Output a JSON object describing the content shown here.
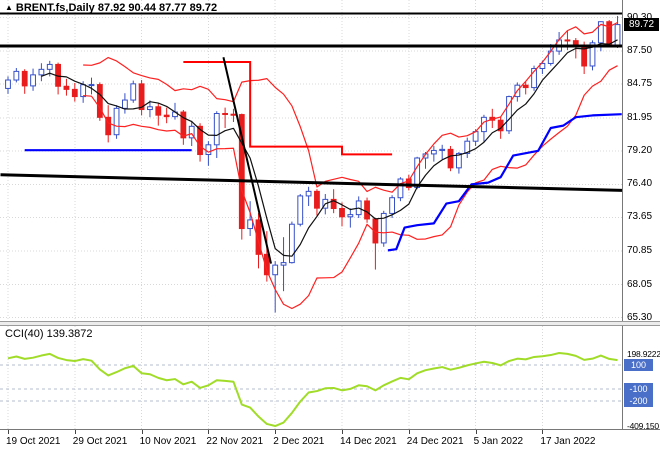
{
  "window": {
    "title_symbol": "BRENT.fs,Daily",
    "title_ohlc": "87.92 90.44 87.77 89.72"
  },
  "colors": {
    "background": "#ffffff",
    "bull": "#3650c8",
    "bull_fill": "#ffffff",
    "bear": "#e81c1c",
    "ma_fast": "#101010",
    "bands": "#ff2020",
    "step_line": "#ff0000",
    "slow_line": "#0000ff",
    "objects": "#000000",
    "cci": "#a0dc28",
    "level_line": "#b4bccc",
    "level_badge": "#4a6fc8",
    "price_badge_bg": "#000000",
    "grid": "#d8d8d8"
  },
  "chart_data": {
    "type": "candlestick",
    "symbol": "BRENT.fs",
    "timeframe": "Daily",
    "last_bar": {
      "open": 87.92,
      "high": 90.44,
      "low": 87.77,
      "close": 89.72
    },
    "price_axis": {
      "labels": [
        "90.30",
        "87.50",
        "84.75",
        "81.95",
        "79.20",
        "76.40",
        "73.65",
        "70.85",
        "68.05",
        "65.30"
      ],
      "badge": "89.72",
      "ylim": [
        64.93,
        91.77
      ]
    },
    "x_axis": {
      "ticks": [
        {
          "label": "19 Oct 2021",
          "i": 0
        },
        {
          "label": "29 Oct 2021",
          "i": 8
        },
        {
          "label": "10 Nov 2021",
          "i": 16
        },
        {
          "label": "22 Nov 2021",
          "i": 24
        },
        {
          "label": "2 Dec 2021",
          "i": 32
        },
        {
          "label": "14 Dec 2021",
          "i": 40
        },
        {
          "label": "24 Dec 2021",
          "i": 48
        },
        {
          "label": "5 Jan 2022",
          "i": 56
        },
        {
          "label": "17 Jan 2022",
          "i": 64
        }
      ]
    },
    "candles": [
      [
        84.4,
        85.4,
        83.95,
        85.1
      ],
      [
        85.1,
        86.1,
        84.9,
        85.82
      ],
      [
        85.82,
        86.0,
        83.95,
        84.61
      ],
      [
        84.61,
        86.05,
        84.2,
        85.53
      ],
      [
        85.53,
        86.5,
        85.0,
        85.99
      ],
      [
        85.99,
        86.7,
        85.4,
        86.4
      ],
      [
        86.4,
        86.55,
        83.9,
        84.58
      ],
      [
        84.58,
        85.2,
        83.8,
        84.32
      ],
      [
        84.32,
        84.85,
        83.3,
        83.72
      ],
      [
        83.72,
        85.0,
        83.2,
        84.71
      ],
      [
        84.71,
        85.3,
        83.9,
        84.72
      ],
      [
        84.72,
        84.9,
        81.7,
        81.99
      ],
      [
        81.99,
        83.0,
        79.9,
        80.54
      ],
      [
        80.54,
        83.0,
        80.2,
        82.74
      ],
      [
        82.74,
        84.0,
        82.3,
        83.43
      ],
      [
        83.43,
        85.05,
        83.2,
        84.78
      ],
      [
        84.78,
        85.1,
        82.15,
        82.64
      ],
      [
        82.64,
        83.4,
        82.0,
        82.87
      ],
      [
        82.87,
        83.2,
        81.3,
        82.17
      ],
      [
        82.17,
        82.8,
        81.5,
        82.05
      ],
      [
        82.05,
        83.2,
        81.8,
        82.43
      ],
      [
        82.43,
        82.6,
        79.7,
        80.28
      ],
      [
        80.28,
        81.7,
        79.6,
        81.24
      ],
      [
        81.24,
        81.5,
        78.3,
        78.89
      ],
      [
        78.89,
        80.0,
        77.95,
        79.7
      ],
      [
        79.7,
        82.5,
        78.6,
        82.31
      ],
      [
        82.31,
        82.8,
        81.1,
        82.25
      ],
      [
        82.25,
        82.7,
        81.6,
        82.22
      ],
      [
        82.22,
        82.3,
        71.8,
        72.72
      ],
      [
        72.72,
        75.0,
        72.1,
        73.44
      ],
      [
        73.44,
        74.0,
        69.4,
        70.57
      ],
      [
        70.57,
        72.5,
        68.3,
        68.87
      ],
      [
        68.87,
        70.0,
        65.72,
        69.67
      ],
      [
        69.67,
        72.0,
        67.5,
        69.88
      ],
      [
        69.88,
        73.3,
        69.8,
        73.08
      ],
      [
        73.08,
        75.6,
        72.9,
        75.44
      ],
      [
        75.44,
        76.2,
        74.6,
        75.82
      ],
      [
        75.82,
        76.0,
        73.8,
        74.42
      ],
      [
        74.42,
        75.6,
        73.9,
        75.15
      ],
      [
        75.15,
        76.0,
        74.0,
        74.39
      ],
      [
        74.39,
        74.9,
        72.9,
        73.7
      ],
      [
        73.7,
        74.4,
        72.8,
        73.88
      ],
      [
        73.88,
        75.4,
        73.6,
        75.02
      ],
      [
        75.02,
        75.3,
        73.2,
        73.52
      ],
      [
        73.52,
        73.6,
        69.3,
        71.52
      ],
      [
        71.52,
        74.2,
        71.2,
        73.98
      ],
      [
        73.98,
        75.5,
        73.6,
        75.29
      ],
      [
        75.29,
        77.0,
        75.0,
        76.85
      ],
      [
        76.85,
        77.2,
        75.9,
        76.14
      ],
      [
        76.14,
        78.7,
        76.0,
        78.6
      ],
      [
        78.6,
        79.1,
        77.7,
        78.94
      ],
      [
        78.94,
        79.6,
        78.3,
        79.23
      ],
      [
        79.23,
        79.7,
        78.5,
        79.32
      ],
      [
        79.32,
        79.6,
        77.5,
        77.78
      ],
      [
        77.78,
        79.1,
        77.3,
        78.98
      ],
      [
        78.98,
        80.3,
        78.6,
        80.0
      ],
      [
        80.0,
        81.0,
        79.6,
        80.8
      ],
      [
        80.8,
        82.2,
        79.9,
        81.99
      ],
      [
        81.99,
        82.7,
        81.1,
        81.75
      ],
      [
        81.75,
        82.0,
        80.2,
        80.87
      ],
      [
        80.87,
        83.8,
        80.6,
        83.72
      ],
      [
        83.72,
        84.9,
        83.3,
        84.67
      ],
      [
        84.67,
        85.0,
        83.9,
        84.47
      ],
      [
        84.47,
        86.3,
        84.2,
        86.06
      ],
      [
        86.06,
        86.71,
        85.6,
        86.48
      ],
      [
        86.48,
        88.1,
        86.3,
        87.51
      ],
      [
        87.51,
        89.1,
        87.2,
        88.44
      ],
      [
        88.44,
        89.2,
        87.6,
        88.38
      ],
      [
        88.38,
        88.6,
        86.9,
        87.89
      ],
      [
        87.89,
        88.3,
        85.6,
        86.27
      ],
      [
        86.27,
        88.4,
        85.9,
        88.2
      ],
      [
        88.2,
        90.0,
        87.5,
        89.96
      ],
      [
        89.96,
        90.1,
        87.95,
        88.1
      ],
      [
        87.92,
        90.44,
        87.77,
        89.72
      ]
    ],
    "overlays": {
      "sma_period": 5,
      "bollinger": {
        "period": 10,
        "dev": 1.6
      },
      "horizontal_lines": [
        {
          "price": 90.63,
          "w": 2
        },
        {
          "price": 87.95,
          "w": 3
        }
      ],
      "trend_lines": [
        {
          "i1": -0.9,
          "p1": 77.2,
          "i2": 73.6,
          "p2": 75.9,
          "w": 3
        },
        {
          "i1": 25.8,
          "p1": 87.0,
          "i2": 31.5,
          "p2": 69.8,
          "w": 2
        }
      ],
      "red_step": [
        [
          21,
          86.6
        ],
        [
          29,
          86.6
        ],
        [
          29,
          79.55
        ],
        [
          40,
          79.55
        ],
        [
          40,
          78.9
        ],
        [
          46,
          78.9
        ]
      ],
      "blue_segments": [
        [
          [
            2,
            79.25
          ],
          [
            22,
            79.25
          ]
        ],
        [
          [
            45.5,
            70.9
          ],
          [
            46.5,
            71.0
          ],
          [
            47.5,
            72.8
          ],
          [
            49,
            73.0
          ],
          [
            51,
            73.15
          ],
          [
            52.5,
            74.8
          ],
          [
            54,
            75.0
          ],
          [
            55.5,
            76.4
          ],
          [
            57.5,
            76.55
          ],
          [
            59,
            77.0
          ],
          [
            60.5,
            78.8
          ],
          [
            62,
            79.0
          ],
          [
            63.5,
            79.2
          ],
          [
            65,
            81.1
          ],
          [
            66.5,
            81.3
          ],
          [
            68,
            82.0
          ],
          [
            70,
            82.15
          ],
          [
            73.5,
            82.25
          ]
        ]
      ]
    },
    "indicator": {
      "name_label": "CCI(40)",
      "value_label": "139.3872",
      "type": "line",
      "values": [
        155,
        170,
        150,
        160,
        178,
        192,
        158,
        140,
        132,
        148,
        135,
        62,
        12,
        40,
        72,
        92,
        30,
        22,
        -8,
        -28,
        -18,
        -62,
        -40,
        -92,
        -70,
        -28,
        -33,
        -40,
        -230,
        -255,
        -330,
        -392,
        -409.15,
        -380,
        -300,
        -205,
        -130,
        -118,
        -95,
        -92,
        -112,
        -100,
        -70,
        -78,
        -112,
        -70,
        -38,
        -8,
        -20,
        30,
        56,
        70,
        82,
        60,
        76,
        96,
        112,
        126,
        116,
        96,
        132,
        152,
        146,
        166,
        172,
        182,
        198.92,
        192,
        175,
        142,
        152,
        178,
        150,
        139.39
      ],
      "levels": [
        "100",
        "-100",
        "-200"
      ],
      "scale_top_label": "198.9222",
      "scale_bottom_label": "-409.150",
      "ylim": [
        -434,
        424
      ]
    }
  }
}
